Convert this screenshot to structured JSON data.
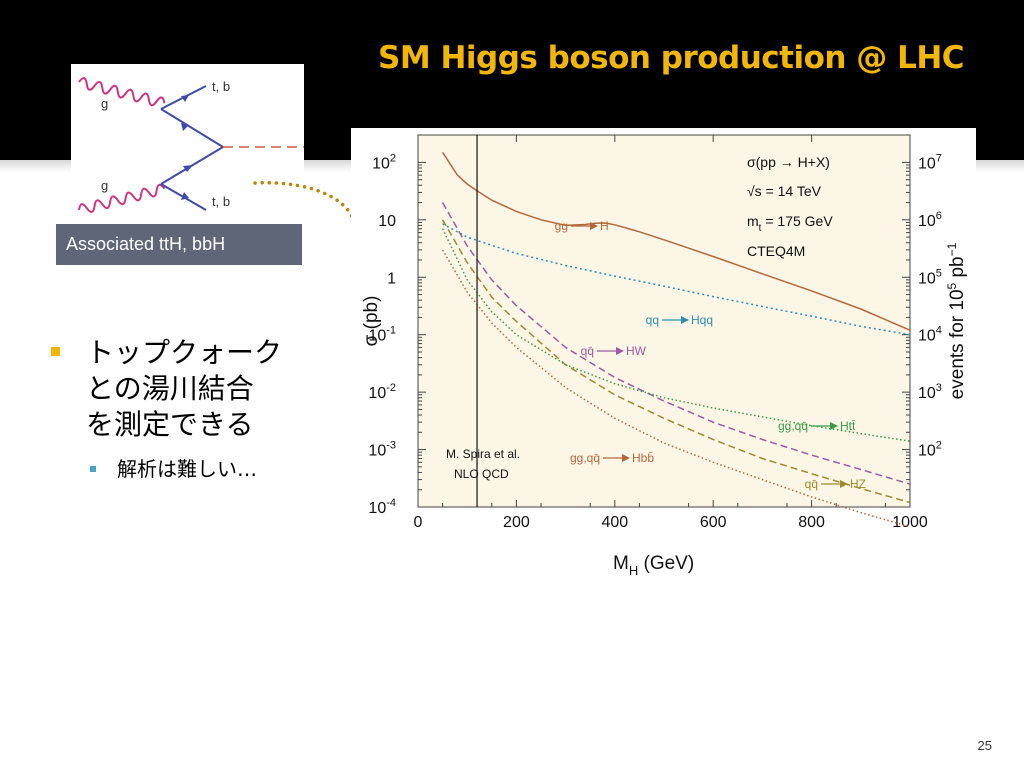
{
  "slide": {
    "title": "SM Higgs boson production @ LHC",
    "page_number": "25",
    "colors": {
      "title": "#f2b705",
      "header_bg": "#000000",
      "caption_bg": "#5e6678",
      "bullet": "#f2b705",
      "sub_bullet": "#4aa3c0",
      "connector": "#b8860b"
    }
  },
  "diagram": {
    "caption": "Associated ttH, bbH",
    "labels": {
      "gluon_top": "g",
      "gluon_bottom": "g",
      "quark_top": "t, b",
      "quark_bottom": "t, b"
    }
  },
  "bullets": {
    "main": [
      "トップクォーク",
      "との湯川結合",
      "を測定できる"
    ],
    "sub": "解析は難しい…"
  },
  "chart_data": {
    "type": "line",
    "xlabel": "M",
    "xlabel_sub": "H",
    "xlabel_unit": "(GeV)",
    "ylabel": "σ (pb)",
    "y2label": "events for 10",
    "y2label_exp": "5",
    "y2label_unit": "pb",
    "y2label_unit_exp": "−1",
    "xlim": [
      0,
      1000
    ],
    "ylim": [
      0.0001,
      200
    ],
    "yscale": "log",
    "x_ticks": [
      "0",
      "200",
      "400",
      "600",
      "800",
      "1000"
    ],
    "x_tick_values": [
      0,
      200,
      400,
      600,
      800,
      1000
    ],
    "y_ticks": [
      {
        "base": "10",
        "exp": "2",
        "value": 100
      },
      {
        "base": "10",
        "exp": "",
        "value": 10
      },
      {
        "base": "1",
        "exp": "",
        "value": 1
      },
      {
        "base": "10",
        "exp": "-1",
        "value": 0.1
      },
      {
        "base": "10",
        "exp": "-2",
        "value": 0.01
      },
      {
        "base": "10",
        "exp": "-3",
        "value": 0.001
      },
      {
        "base": "10",
        "exp": "-4",
        "value": 0.0001
      }
    ],
    "y2_ticks": [
      {
        "base": "10",
        "exp": "7",
        "value": 100
      },
      {
        "base": "10",
        "exp": "6",
        "value": 10
      },
      {
        "base": "10",
        "exp": "5",
        "value": 1
      },
      {
        "base": "10",
        "exp": "4",
        "value": 0.1
      },
      {
        "base": "10",
        "exp": "3",
        "value": 0.01
      },
      {
        "base": "10",
        "exp": "2",
        "value": 0.001
      }
    ],
    "info": {
      "process": "σ(pp → H+X)",
      "energy": "√s = 14 TeV",
      "mass_top": "m",
      "mass_top_sub": "t",
      "mass_top_value": " = 175 GeV",
      "pdf": "CTEQ4M"
    },
    "credit": [
      "M. Spira et al.",
      "NLO  QCD"
    ],
    "vline_x": 120,
    "series": [
      {
        "name": "gg → H",
        "color": "#b5673c",
        "dash": "",
        "x": [
          50,
          80,
          100,
          120,
          150,
          200,
          250,
          300,
          340,
          360,
          380,
          400,
          450,
          500,
          600,
          700,
          800,
          900,
          1000
        ],
        "y": [
          150,
          60,
          42,
          32,
          22,
          14,
          10,
          8,
          8.3,
          8.7,
          8.8,
          8.2,
          6.2,
          4.5,
          2.3,
          1.15,
          0.58,
          0.28,
          0.12
        ]
      },
      {
        "name": "qq → Hqq",
        "color": "#2e8fae",
        "dash": "2,3",
        "x": [
          50,
          100,
          150,
          200,
          300,
          400,
          500,
          600,
          700,
          800,
          900,
          1000
        ],
        "y": [
          8.5,
          5,
          3.6,
          2.6,
          1.6,
          1.05,
          0.7,
          0.46,
          0.31,
          0.21,
          0.14,
          0.1
        ]
      },
      {
        "name": "qq̄ → HW",
        "color": "#9b5ba6",
        "dash": "7,4",
        "x": [
          50,
          100,
          150,
          200,
          300,
          400,
          500,
          600,
          700,
          800,
          900,
          1000
        ],
        "y": [
          20,
          3.5,
          0.9,
          0.32,
          0.06,
          0.018,
          0.007,
          0.003,
          0.0015,
          0.0008,
          0.00045,
          0.00025
        ]
      },
      {
        "name": "qq̄ → HZ",
        "color": "#9e8a2e",
        "dash": "7,4",
        "x": [
          50,
          100,
          150,
          200,
          300,
          400,
          500,
          600,
          700,
          800,
          900,
          1000
        ],
        "y": [
          10,
          1.8,
          0.45,
          0.17,
          0.03,
          0.009,
          0.0035,
          0.0015,
          0.0007,
          0.00038,
          0.00021,
          0.00012
        ]
      },
      {
        "name": "gg,qq̄ → Htt̄",
        "color": "#3a9a4a",
        "dash": "1.5,2.5",
        "x": [
          50,
          100,
          150,
          200,
          300,
          400,
          500,
          600,
          700,
          800,
          900,
          1000
        ],
        "y": [
          7,
          0.9,
          0.25,
          0.1,
          0.03,
          0.014,
          0.008,
          0.0053,
          0.0037,
          0.0026,
          0.0019,
          0.0014
        ]
      },
      {
        "name": "gg,qq̄ → Hbb̄",
        "color": "#b5673c",
        "dash": "1.5,2.5",
        "x": [
          50,
          100,
          150,
          200,
          300,
          400,
          500,
          600,
          700,
          800,
          900,
          1000
        ],
        "y": [
          3,
          0.55,
          0.16,
          0.06,
          0.012,
          0.0035,
          0.0013,
          0.0006,
          0.0003,
          0.00015,
          8e-05,
          4.5e-05
        ]
      }
    ],
    "curve_labels": [
      {
        "from": "gg",
        "to": "H",
        "series": 0
      },
      {
        "from": "qq",
        "to": "Hqq",
        "series": 1
      },
      {
        "from": "qq̄",
        "to": "HW",
        "series": 2
      },
      {
        "from": "gg,qq̄",
        "to": "Htt̄",
        "series": 4
      },
      {
        "from": "gg,qq̄",
        "to": "Hbb̄",
        "series": 5
      },
      {
        "from": "qq̄",
        "to": "HZ",
        "series": 3
      }
    ]
  }
}
